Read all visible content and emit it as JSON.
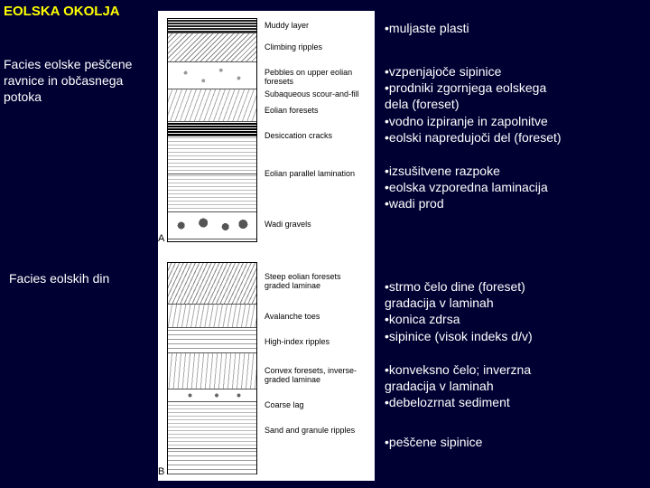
{
  "title": "EOLSKA OKOLJA",
  "left": {
    "label1": "Facies eolske peščene ravnice in občasnega potoka",
    "label2": "Facies eolskih din"
  },
  "diagram": {
    "a": {
      "labels": {
        "muddy": "Muddy layer",
        "climbing": "Climbing ripples",
        "pebbles": "Pebbles on upper eolian foresets",
        "subaq": "Subaqueous scour-and-fill",
        "eolfrs": "Eolian foresets",
        "cracks": "Desiccation cracks",
        "parlam": "Eolian parallel lamination",
        "wadi": "Wadi gravels"
      },
      "letter": "A"
    },
    "b": {
      "labels": {
        "steep": "Steep eolian foresets graded laminae",
        "aval": "Avalanche toes",
        "hind": "High-index ripples",
        "convex": "Convex foresets, inverse-graded laminae",
        "coarse": "Coarse lag",
        "sand": "Sand and granule ripples"
      },
      "letter": "B"
    }
  },
  "right": {
    "g1": "•muljaste plasti",
    "g2": "•vzpenjajoče sipinice\n•prodniki zgornjega eolskega\n dela (foreset)\n•vodno izpiranje in zapolnitve\n•eolski napredujoči del (foreset)",
    "g3": "•izsušitvene razpoke\n•eolska vzporedna laminacija\n•wadi prod",
    "g4": "•strmo čelo dine (foreset)\ngradacija v laminah\n•konica zdrsa\n•sipinice (visok indeks d/v)",
    "g5": "•konveksno čelo; inverzna\ngradacija v laminah\n•debelozrnat sediment",
    "g6": "•peščene sipinice"
  }
}
